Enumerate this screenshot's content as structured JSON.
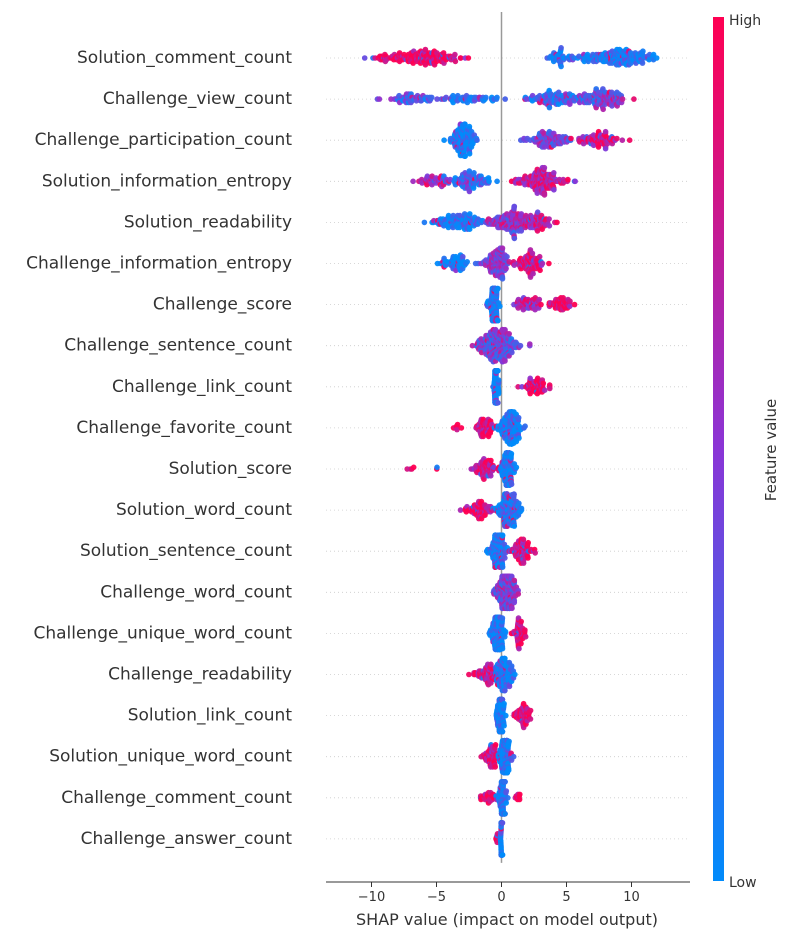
{
  "chart_data": {
    "type": "scatter",
    "subtype": "shap-beeswarm",
    "title": "",
    "xlabel": "SHAP value (impact on model output)",
    "ylabel": "",
    "xlim": [
      -13.5,
      14.5
    ],
    "x_ticks": [
      -10,
      -5,
      0,
      5,
      10
    ],
    "x_tick_labels": [
      "−10",
      "−5",
      "0",
      "5",
      "10"
    ],
    "grid": false,
    "colorbar": {
      "label": "Feature value",
      "high_label": "High",
      "low_label": "Low",
      "low_color": "#008bfb",
      "mid_color": "#8a35d6",
      "high_color": "#ff0052"
    },
    "features": [
      {
        "name": "Solution_comment_count",
        "range": [
          -12.5,
          13.5
        ],
        "clusters": [
          {
            "c": -5.5,
            "s": 2.5,
            "n": 110,
            "t": 0.92
          },
          {
            "c": -8,
            "s": 2.2,
            "n": 50,
            "t": 0.95
          },
          {
            "c": 9,
            "s": 2.6,
            "n": 170,
            "t": 0.05
          },
          {
            "c": 4.5,
            "s": 1.2,
            "n": 40,
            "t": 0.08
          }
        ]
      },
      {
        "name": "Challenge_view_count",
        "range": [
          -11,
          11.8
        ],
        "clusters": [
          {
            "c": -7,
            "s": 2,
            "n": 60,
            "t": 0.3
          },
          {
            "c": -2,
            "s": 2.5,
            "n": 50,
            "t": 0.1
          },
          {
            "c": 3.5,
            "s": 2,
            "n": 70,
            "t": 0.15
          },
          {
            "c": 8,
            "s": 1.8,
            "n": 90,
            "t": 0.45
          },
          {
            "c": 6,
            "s": 2.5,
            "n": 60,
            "t": 0.3
          }
        ]
      },
      {
        "name": "Challenge_participation_count",
        "range": [
          -5.5,
          11
        ],
        "clusters": [
          {
            "c": -3,
            "s": 1,
            "n": 140,
            "t": 0.03
          },
          {
            "c": 3.5,
            "s": 1.6,
            "n": 100,
            "t": 0.45
          },
          {
            "c": 7.5,
            "s": 1.8,
            "n": 80,
            "t": 0.85
          }
        ]
      },
      {
        "name": "Solution_information_entropy",
        "range": [
          -7.5,
          8.3
        ],
        "clusters": [
          {
            "c": -2.5,
            "s": 1.8,
            "n": 100,
            "t": 0.25
          },
          {
            "c": -5.5,
            "s": 1.3,
            "n": 40,
            "t": 0.75
          },
          {
            "c": 3,
            "s": 1.8,
            "n": 160,
            "t": 0.75
          }
        ]
      },
      {
        "name": "Solution_readability",
        "range": [
          -7,
          5.2
        ],
        "clusters": [
          {
            "c": -3.5,
            "s": 2,
            "n": 110,
            "t": 0.08
          },
          {
            "c": 0.5,
            "s": 1.6,
            "n": 140,
            "t": 0.55
          },
          {
            "c": 3,
            "s": 1.2,
            "n": 60,
            "t": 0.72
          }
        ]
      },
      {
        "name": "Challenge_information_entropy",
        "range": [
          -5.5,
          4.5
        ],
        "clusters": [
          {
            "c": -3.5,
            "s": 1.2,
            "n": 60,
            "t": 0.04
          },
          {
            "c": -0.3,
            "s": 1,
            "n": 120,
            "t": 0.5
          },
          {
            "c": 2.2,
            "s": 1.1,
            "n": 90,
            "t": 0.82
          }
        ]
      },
      {
        "name": "Challenge_score",
        "range": [
          -1.2,
          6.2
        ],
        "clusters": [
          {
            "c": -0.6,
            "s": 0.35,
            "n": 120,
            "t": 0.03
          },
          {
            "c": 2,
            "s": 1,
            "n": 60,
            "t": 0.7
          },
          {
            "c": 4.5,
            "s": 0.9,
            "n": 50,
            "t": 0.97
          }
        ]
      },
      {
        "name": "Challenge_sentence_count",
        "range": [
          -4,
          3.5
        ],
        "clusters": [
          {
            "c": -0.3,
            "s": 1.5,
            "n": 230,
            "t": 0.4
          }
        ]
      },
      {
        "name": "Challenge_link_count",
        "range": [
          -1,
          4.6
        ],
        "clusters": [
          {
            "c": -0.4,
            "s": 0.2,
            "n": 100,
            "t": 0.02
          },
          {
            "c": 2.6,
            "s": 0.9,
            "n": 60,
            "t": 0.92
          }
        ]
      },
      {
        "name": "Challenge_favorite_count",
        "range": [
          -4.5,
          2.8
        ],
        "clusters": [
          {
            "c": 0.7,
            "s": 0.8,
            "n": 150,
            "t": 0.06
          },
          {
            "c": -1.2,
            "s": 0.7,
            "n": 60,
            "t": 0.88
          },
          {
            "c": -3.5,
            "s": 0.4,
            "n": 6,
            "t": 1.0
          }
        ]
      },
      {
        "name": "Solution_score",
        "range": [
          -7.5,
          1.6
        ],
        "clusters": [
          {
            "c": 0.5,
            "s": 0.5,
            "n": 130,
            "t": 0.03
          },
          {
            "c": -1.3,
            "s": 0.9,
            "n": 70,
            "t": 0.85
          },
          {
            "c": -7,
            "s": 0.3,
            "n": 4,
            "t": 1.0
          },
          {
            "c": -5,
            "s": 0.2,
            "n": 2,
            "t": 1.0
          }
        ]
      },
      {
        "name": "Solution_word_count",
        "range": [
          -4.5,
          2.2
        ],
        "clusters": [
          {
            "c": 0.5,
            "s": 0.8,
            "n": 150,
            "t": 0.1
          },
          {
            "c": -1.7,
            "s": 1,
            "n": 70,
            "t": 0.9
          }
        ]
      },
      {
        "name": "Solution_sentence_count",
        "range": [
          -1.4,
          3.4
        ],
        "clusters": [
          {
            "c": -0.3,
            "s": 0.6,
            "n": 120,
            "t": 0.06
          },
          {
            "c": 1.5,
            "s": 0.8,
            "n": 80,
            "t": 0.82
          }
        ]
      },
      {
        "name": "Challenge_word_count",
        "range": [
          -1.8,
          2.8
        ],
        "clusters": [
          {
            "c": 0.3,
            "s": 0.8,
            "n": 170,
            "t": 0.45
          }
        ]
      },
      {
        "name": "Challenge_unique_word_count",
        "range": [
          -2.6,
          2.2
        ],
        "clusters": [
          {
            "c": -0.3,
            "s": 0.5,
            "n": 130,
            "t": 0.05
          },
          {
            "c": 1.4,
            "s": 0.5,
            "n": 50,
            "t": 0.85
          }
        ]
      },
      {
        "name": "Challenge_readability",
        "range": [
          -3.4,
          2.6
        ],
        "clusters": [
          {
            "c": 0.2,
            "s": 0.7,
            "n": 120,
            "t": 0.1
          },
          {
            "c": -1.2,
            "s": 0.9,
            "n": 70,
            "t": 0.85
          }
        ]
      },
      {
        "name": "Solution_link_count",
        "range": [
          -1,
          3
        ],
        "clusters": [
          {
            "c": -0.1,
            "s": 0.3,
            "n": 110,
            "t": 0.03
          },
          {
            "c": 1.6,
            "s": 0.6,
            "n": 60,
            "t": 0.9
          }
        ]
      },
      {
        "name": "Solution_unique_word_count",
        "range": [
          -2.3,
          1.4
        ],
        "clusters": [
          {
            "c": 0.3,
            "s": 0.45,
            "n": 130,
            "t": 0.05
          },
          {
            "c": -0.8,
            "s": 0.6,
            "n": 60,
            "t": 0.85
          }
        ]
      },
      {
        "name": "Challenge_comment_count",
        "range": [
          -3,
          1.8
        ],
        "clusters": [
          {
            "c": 0.1,
            "s": 0.3,
            "n": 120,
            "t": 0.05
          },
          {
            "c": -1,
            "s": 0.8,
            "n": 30,
            "t": 0.95
          },
          {
            "c": 1.2,
            "s": 0.3,
            "n": 10,
            "t": 0.9
          }
        ]
      },
      {
        "name": "Challenge_answer_count",
        "range": [
          -0.6,
          0.15
        ],
        "clusters": [
          {
            "c": 0,
            "s": 0.06,
            "n": 100,
            "t": 0.05
          },
          {
            "c": -0.4,
            "s": 0.1,
            "n": 6,
            "t": 0.9
          }
        ]
      }
    ]
  }
}
